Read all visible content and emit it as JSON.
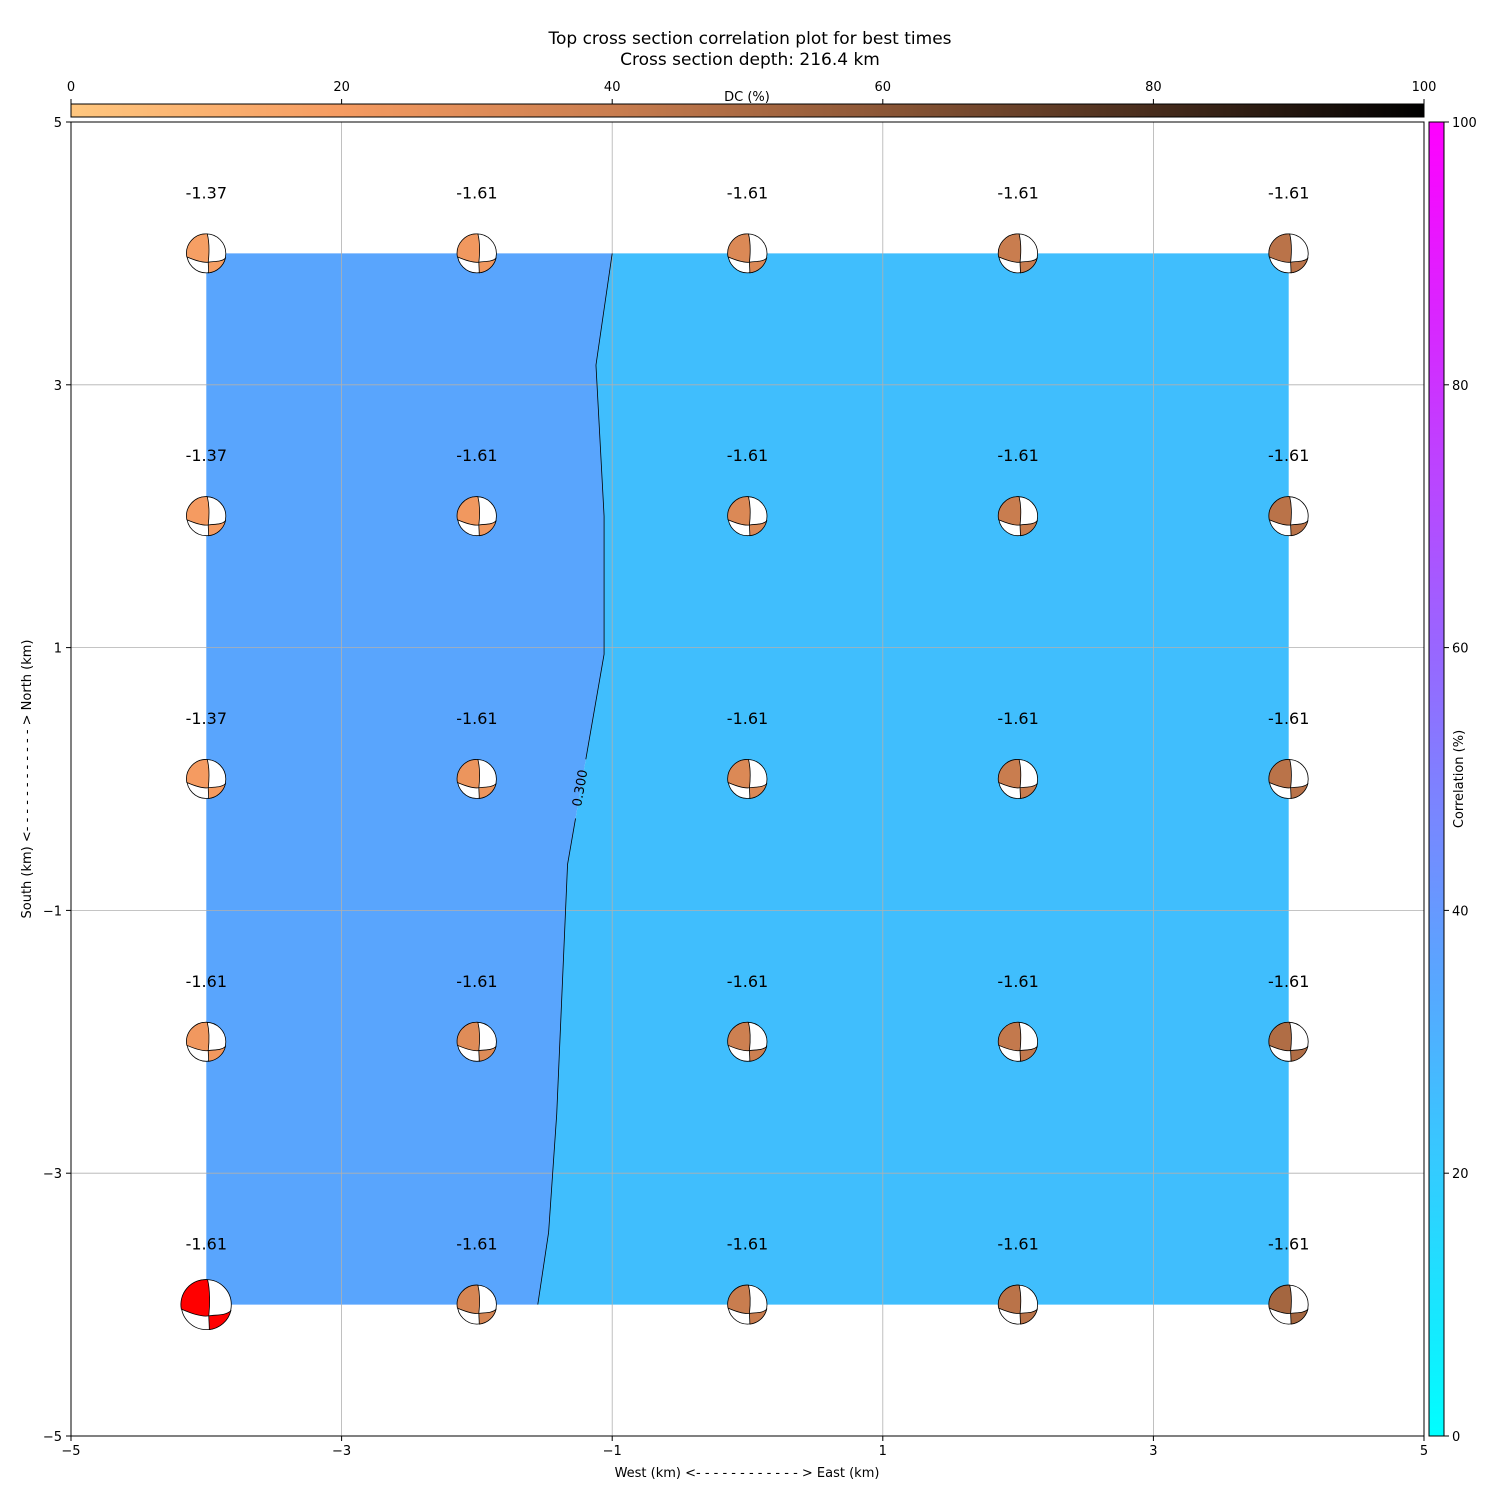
{
  "chart_data": {
    "type": "heatmap",
    "title": "Top cross section correlation plot for best times",
    "subtitle": "Cross section depth: 216.4 km",
    "xlabel": "West (km) <- - - - - - - - - - - - > East (km)",
    "ylabel": "South (km) <- - - - - - - - - - - - > North (km)",
    "xlim": [
      -5,
      5
    ],
    "ylim": [
      -5,
      5
    ],
    "x_ticks": [
      -5,
      -3,
      -1,
      1,
      3,
      5
    ],
    "y_ticks": [
      -5,
      -3,
      -1,
      1,
      3,
      5
    ],
    "x_tick_labels": [
      "−5",
      "−3",
      "−1",
      "1",
      "3",
      "5"
    ],
    "y_tick_labels": [
      "−5",
      "−3",
      "−1",
      "1",
      "3",
      "5"
    ],
    "grid": true,
    "grid_x": [
      -4,
      -2,
      0,
      2,
      4
    ],
    "grid_y": [
      -4,
      -2,
      0,
      2,
      4
    ],
    "correlation_field": {
      "contour_level": 0.3,
      "contour_label": "0.300",
      "contour_line": [
        [
          -1.0,
          4.0
        ],
        [
          -1.12,
          3.15
        ],
        [
          -1.06,
          2.0
        ],
        [
          -1.06,
          0.95
        ],
        [
          -1.33,
          -0.65
        ],
        [
          -1.41,
          -2.55
        ],
        [
          -1.47,
          -3.45
        ],
        [
          -1.55,
          -4.0
        ]
      ],
      "low_side_color": "#59a5fd",
      "high_side_color": "#40befd"
    },
    "points": [
      {
        "x": -4,
        "y": 4,
        "label": "-1.37",
        "dc": 18,
        "strike_shift": 0,
        "rot": 0
      },
      {
        "x": -2,
        "y": 4,
        "label": "-1.61",
        "dc": 22,
        "rot": 0
      },
      {
        "x": 0,
        "y": 4,
        "label": "-1.61",
        "dc": 32,
        "rot": 0
      },
      {
        "x": 2,
        "y": 4,
        "label": "-1.61",
        "dc": 40,
        "rot": 0
      },
      {
        "x": 4,
        "y": 4,
        "label": "-1.61",
        "dc": 45,
        "rot": 0
      },
      {
        "x": -4,
        "y": 2,
        "label": "-1.37",
        "dc": 20,
        "rot": 0
      },
      {
        "x": -2,
        "y": 2,
        "label": "-1.61",
        "dc": 22,
        "rot": 0
      },
      {
        "x": 0,
        "y": 2,
        "label": "-1.61",
        "dc": 32,
        "rot": 0
      },
      {
        "x": 2,
        "y": 2,
        "label": "-1.61",
        "dc": 40,
        "rot": 0
      },
      {
        "x": 4,
        "y": 2,
        "label": "-1.61",
        "dc": 45,
        "rot": 0
      },
      {
        "x": -4,
        "y": 0,
        "label": "-1.37",
        "dc": 20,
        "rot": 0
      },
      {
        "x": -2,
        "y": 0,
        "label": "-1.61",
        "dc": 24,
        "rot": 0
      },
      {
        "x": 0,
        "y": 0,
        "label": "-1.61",
        "dc": 32,
        "rot": 0
      },
      {
        "x": 2,
        "y": 0,
        "label": "-1.61",
        "dc": 40,
        "rot": 0
      },
      {
        "x": 4,
        "y": 0,
        "label": "-1.61",
        "dc": 45,
        "rot": 0
      },
      {
        "x": -4,
        "y": -2,
        "label": "-1.61",
        "dc": 22,
        "rot": 0
      },
      {
        "x": -2,
        "y": -2,
        "label": "-1.61",
        "dc": 30,
        "rot": 0
      },
      {
        "x": 0,
        "y": -2,
        "label": "-1.61",
        "dc": 38,
        "rot": 0
      },
      {
        "x": 2,
        "y": -2,
        "label": "-1.61",
        "dc": 42,
        "rot": 0
      },
      {
        "x": 4,
        "y": -2,
        "label": "-1.61",
        "dc": 48,
        "rot": 0
      },
      {
        "x": -4,
        "y": -4,
        "label": "-1.61",
        "dc": null,
        "highlight": true,
        "fill": "#ff0000"
      },
      {
        "x": -2,
        "y": -4,
        "label": "-1.61",
        "dc": 34,
        "rot": 0
      },
      {
        "x": 0,
        "y": -4,
        "label": "-1.61",
        "dc": 40,
        "rot": 0
      },
      {
        "x": 2,
        "y": -4,
        "label": "-1.61",
        "dc": 45,
        "rot": 0
      },
      {
        "x": 4,
        "y": -4,
        "label": "-1.61",
        "dc": 52,
        "rot": 0
      }
    ],
    "dc_colorbar": {
      "label": "DC (%)",
      "range": [
        0,
        100
      ],
      "ticks": [
        0,
        20,
        40,
        60,
        80,
        100
      ],
      "tick_labels": [
        "0",
        "20",
        "40",
        "60",
        "80",
        "100"
      ],
      "colormap": "copper_r",
      "colors": [
        "#ffc77f",
        "#f59b61",
        "#c97d4f",
        "#8b5636",
        "#472c1c",
        "#000000"
      ]
    },
    "correlation_colorbar": {
      "label": "Correlation (%)",
      "range": [
        0,
        100
      ],
      "ticks": [
        0,
        20,
        40,
        60,
        80,
        100
      ],
      "tick_labels": [
        "0",
        "20",
        "40",
        "60",
        "80",
        "100"
      ],
      "colormap": "cool",
      "colors": [
        "#00ffff",
        "#ff00ff"
      ]
    }
  }
}
